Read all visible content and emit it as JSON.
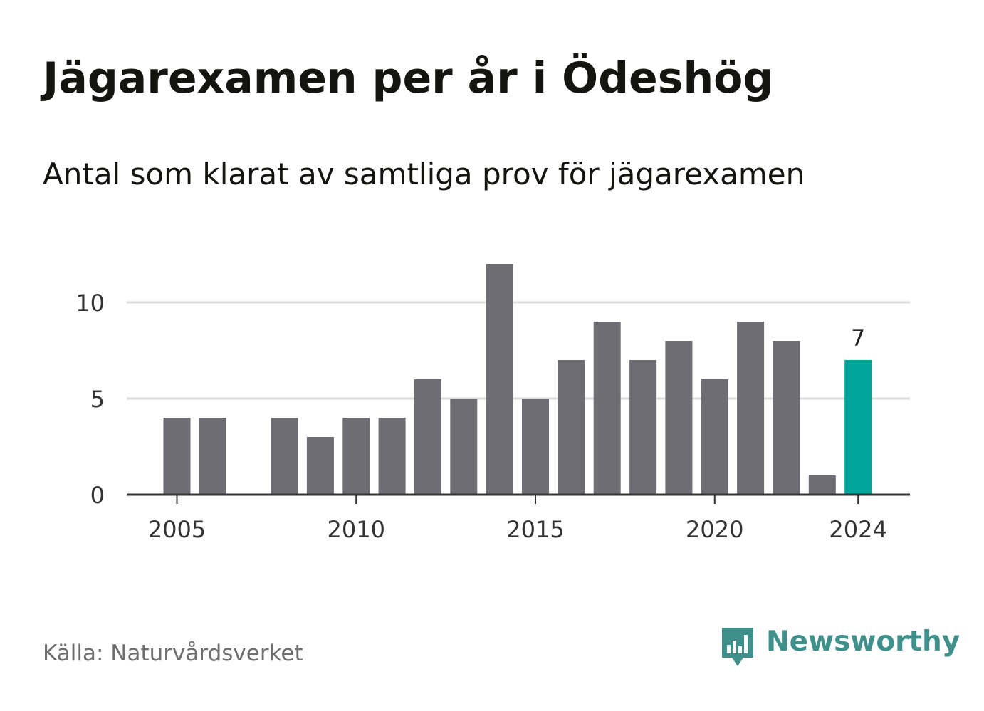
{
  "header": {
    "title": "Jägarexamen per år i Ödeshög",
    "subtitle": "Antal som klarat av samtliga prov för jägarexamen"
  },
  "footer": {
    "source": "Källa: Naturvårdsverket",
    "brand": "Newsworthy",
    "brand_icon": "newsworthy-logo-icon"
  },
  "colors": {
    "bar": "#6e6d73",
    "highlight": "#00a59a",
    "grid": "#dcdcdc",
    "axis": "#333333",
    "text": "#141410",
    "brand": "#3f8f8a"
  },
  "chart_data": {
    "type": "bar",
    "title": "Jägarexamen per år i Ödeshög",
    "subtitle": "Antal som klarat av samtliga prov för jägarexamen",
    "xlabel": "",
    "ylabel": "",
    "categories": [
      2005,
      2006,
      2007,
      2008,
      2009,
      2010,
      2011,
      2012,
      2013,
      2014,
      2015,
      2016,
      2017,
      2018,
      2019,
      2020,
      2021,
      2022,
      2023,
      2024
    ],
    "values": [
      4,
      4,
      0,
      4,
      3,
      4,
      4,
      6,
      5,
      12,
      5,
      7,
      9,
      7,
      8,
      6,
      9,
      8,
      1,
      7
    ],
    "highlight_category": 2024,
    "value_labels": [
      {
        "category": 2024,
        "text": "7"
      }
    ],
    "x_ticks": [
      "2005",
      "2010",
      "2015",
      "2020",
      "2024"
    ],
    "y_ticks": [
      "0",
      "5",
      "10"
    ],
    "ylim": [
      0,
      12
    ],
    "grid": true
  }
}
